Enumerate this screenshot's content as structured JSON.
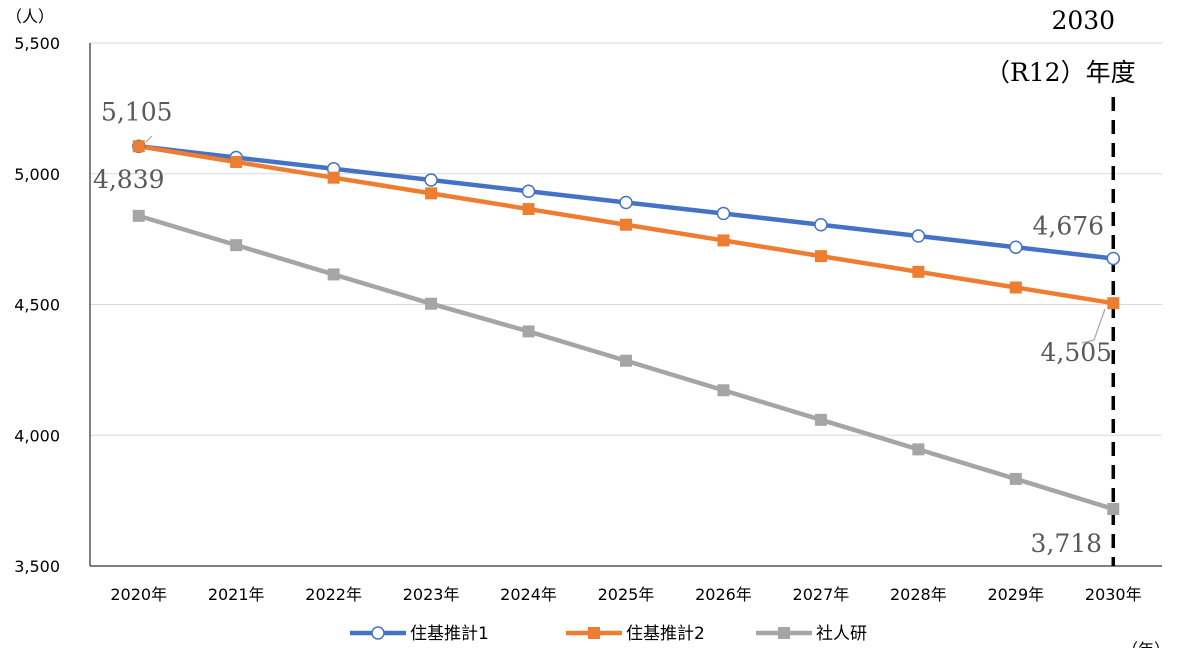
{
  "chart_data": {
    "type": "line",
    "title": "",
    "xlabel": "",
    "ylabel": "",
    "y_unit": "（人）",
    "x_unit": "（年）",
    "categories": [
      "2020年",
      "2021年",
      "2022年",
      "2023年",
      "2024年",
      "2025年",
      "2026年",
      "2027年",
      "2028年",
      "2029年",
      "2030年"
    ],
    "ylim": [
      3500,
      5500
    ],
    "yticks": [
      3500,
      4000,
      4500,
      5000,
      5500
    ],
    "ytick_labels": [
      "3,500",
      "4,000",
      "4,500",
      "5,000",
      "5,500"
    ],
    "grid": "horizontal",
    "legend_position": "bottom",
    "series": [
      {
        "name": "住基推計1",
        "color": "#4472C4",
        "marker": "circle-open",
        "values": [
          5105,
          5062,
          5019,
          4976,
          4933,
          4890,
          4848,
          4805,
          4762,
          4719,
          4676
        ]
      },
      {
        "name": "住基推計2",
        "color": "#ED7D31",
        "marker": "square",
        "values": [
          5105,
          5045,
          4985,
          4925,
          4865,
          4805,
          4745,
          4685,
          4625,
          4565,
          4505
        ]
      },
      {
        "name": "社人研",
        "color": "#A5A5A5",
        "marker": "square",
        "values": [
          4839,
          4727,
          4615,
          4503,
          4397,
          4285,
          4172,
          4059,
          3946,
          3833,
          3718
        ]
      }
    ],
    "data_labels": [
      {
        "text": "5,105",
        "series": 0,
        "index": 0
      },
      {
        "text": "4,839",
        "series": 2,
        "index": 0
      },
      {
        "text": "4,676",
        "series": 0,
        "index": 10
      },
      {
        "text": "4,505",
        "series": 1,
        "index": 10
      },
      {
        "text": "3,718",
        "series": 2,
        "index": 10
      }
    ],
    "annotation": {
      "line1": "2030",
      "line2": "（R12）年度",
      "category_index": 10
    }
  }
}
